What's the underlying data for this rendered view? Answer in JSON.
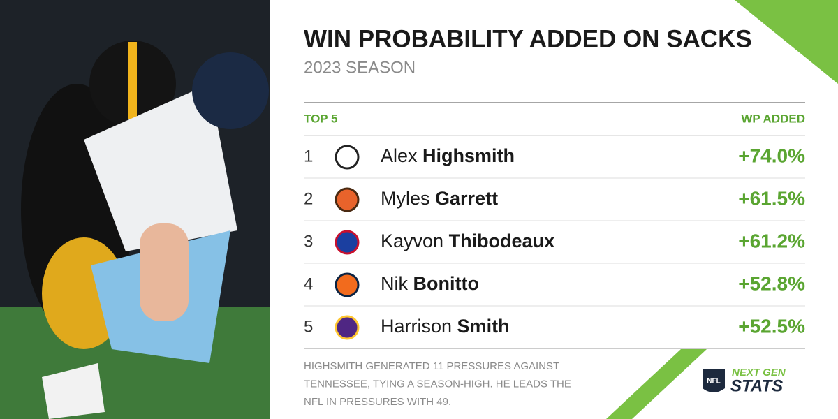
{
  "header": {
    "title": "WIN PROBABILITY ADDED ON SACKS",
    "subtitle": "2023 SEASON"
  },
  "table": {
    "columns": [
      "TOP 5",
      "WP ADDED"
    ],
    "rows": [
      {
        "rank": "1",
        "first": "Alex",
        "last": "Highsmith",
        "value": "+74.0%"
      },
      {
        "rank": "2",
        "first": "Myles",
        "last": "Garrett",
        "value": "+61.5%"
      },
      {
        "rank": "3",
        "first": "Kayvon",
        "last": "Thibodeaux",
        "value": "+61.2%"
      },
      {
        "rank": "4",
        "first": "Nik",
        "last": "Bonitto",
        "value": "+52.8%"
      },
      {
        "rank": "5",
        "first": "Harrison",
        "last": "Smith",
        "value": "+52.5%"
      }
    ]
  },
  "footnote": [
    "HIGHSMITH GENERATED 11 PRESSURES AGAINST",
    "TENNESSEE, TYING A SEASON-HIGH. HE LEADS THE",
    "NFL IN PRESSURES WITH 49."
  ],
  "brand": {
    "badge": "NFL",
    "line1": "NEXT GEN",
    "line2": "STATS"
  }
}
